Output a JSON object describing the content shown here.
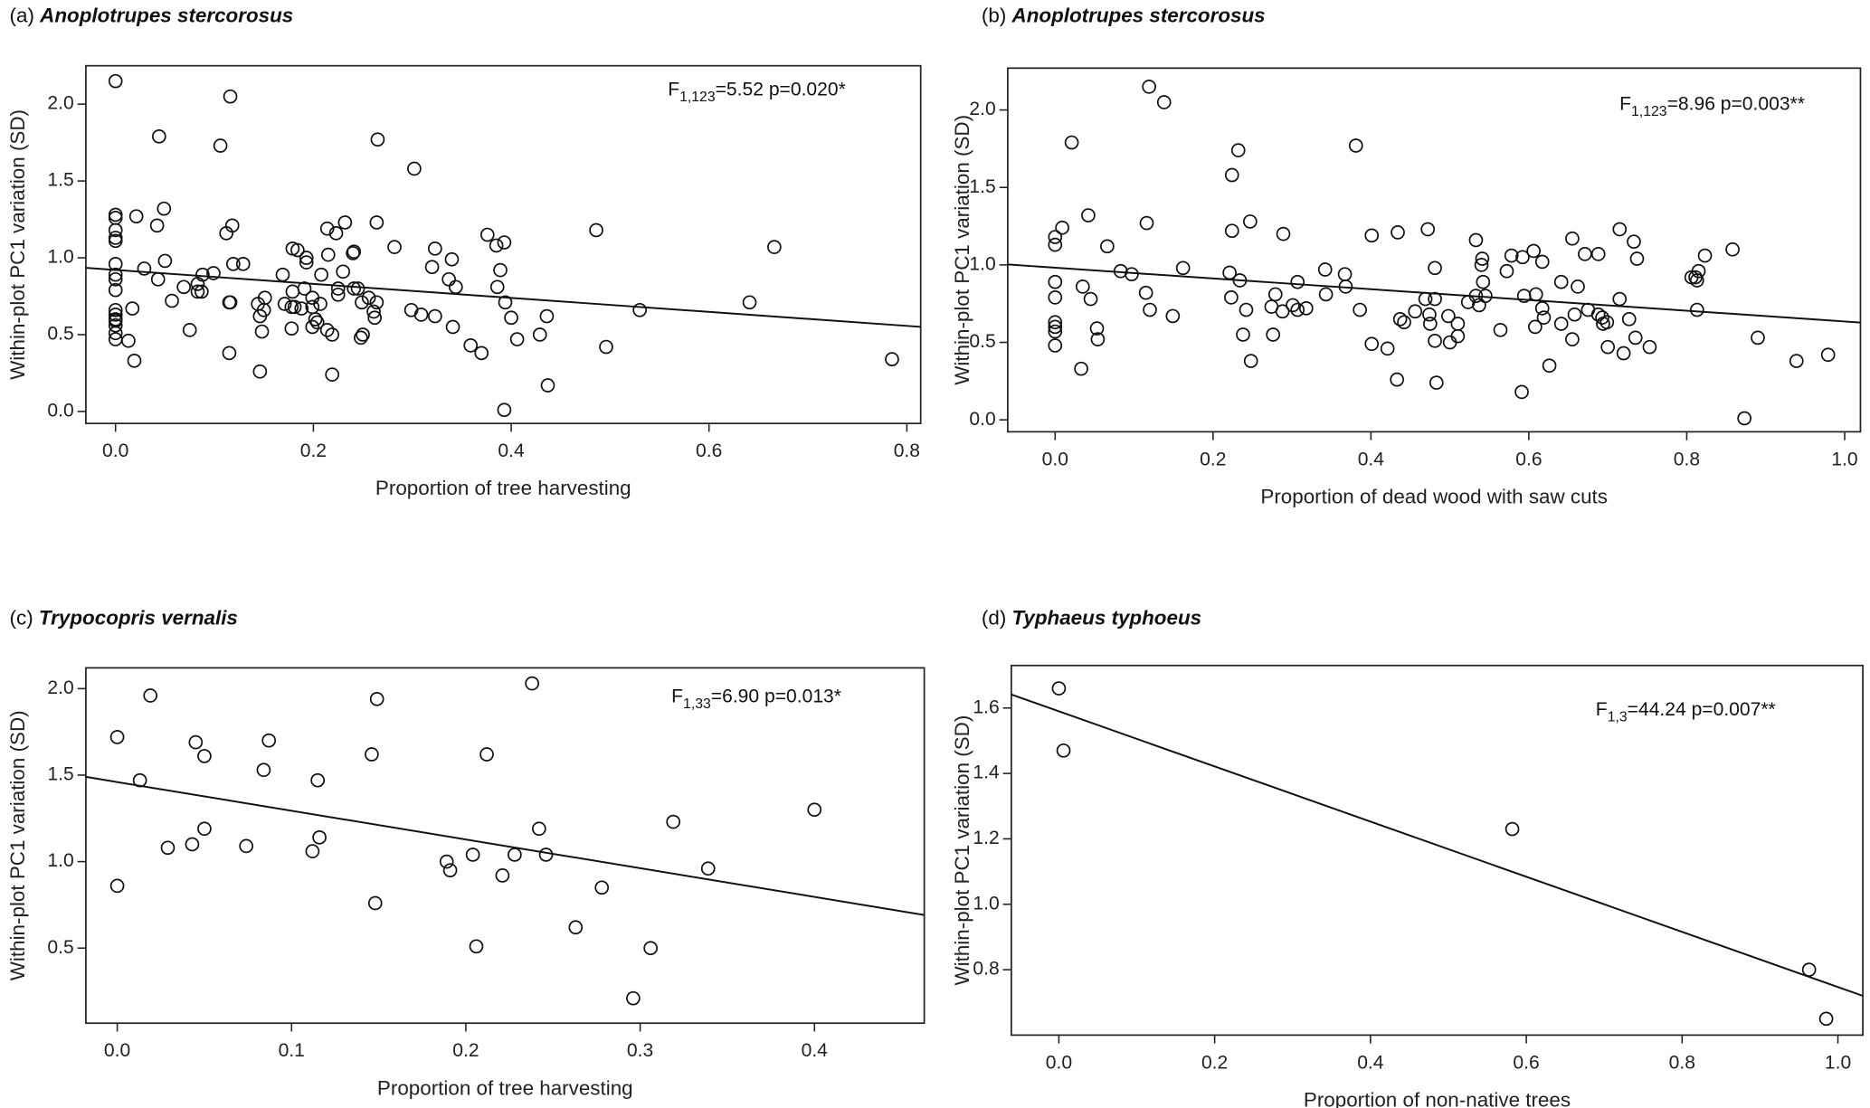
{
  "chart_data": [
    {
      "type": "scatter",
      "panel_label": "(a)",
      "species": "Anoplotrupes stercorosus",
      "xlabel": "Proportion of tree harvesting",
      "ylabel": "Within-plot PC1 variation (SD)",
      "stat": {
        "prefix": "F",
        "subscript": "1,123",
        "text": "=5.52 p=0.020*"
      },
      "xlim": [
        -0.03,
        0.814
      ],
      "ylim": [
        -0.078,
        2.25
      ],
      "xticks": [
        "0.0",
        "0.2",
        "0.4",
        "0.6",
        "0.8"
      ],
      "yticks": [
        "0.0",
        "0.5",
        "1.0",
        "1.5",
        "2.0"
      ],
      "grid": false,
      "fit_line": {
        "intercept": 0.921,
        "slope": -0.455
      },
      "points": [
        [
          0,
          2.15
        ],
        [
          0.116,
          2.05
        ],
        [
          0.044,
          1.79
        ],
        [
          0.106,
          1.73
        ],
        [
          0.265,
          1.77
        ],
        [
          0.302,
          1.58
        ],
        [
          0,
          1.28
        ],
        [
          0,
          1.26
        ],
        [
          0,
          1.18
        ],
        [
          0,
          1.13
        ],
        [
          0,
          1.11
        ],
        [
          0.021,
          1.27
        ],
        [
          0.049,
          1.32
        ],
        [
          0.042,
          1.21
        ],
        [
          0.118,
          1.21
        ],
        [
          0.112,
          1.16
        ],
        [
          0,
          0.96
        ],
        [
          0,
          0.89
        ],
        [
          0,
          0.86
        ],
        [
          0,
          0.79
        ],
        [
          0,
          0.66
        ],
        [
          0,
          0.63
        ],
        [
          0,
          0.6
        ],
        [
          0,
          0.59
        ],
        [
          0,
          0.56
        ],
        [
          0,
          0.51
        ],
        [
          0,
          0.47
        ],
        [
          0.029,
          0.93
        ],
        [
          0.05,
          0.98
        ],
        [
          0.043,
          0.86
        ],
        [
          0.017,
          0.67
        ],
        [
          0.013,
          0.46
        ],
        [
          0.019,
          0.33
        ],
        [
          0.069,
          0.81
        ],
        [
          0.057,
          0.72
        ],
        [
          0.083,
          0.83
        ],
        [
          0.083,
          0.78
        ],
        [
          0.087,
          0.78
        ],
        [
          0.088,
          0.89
        ],
        [
          0.099,
          0.9
        ],
        [
          0.075,
          0.53
        ],
        [
          0.119,
          0.96
        ],
        [
          0.129,
          0.96
        ],
        [
          0.115,
          0.71
        ],
        [
          0.116,
          0.71
        ],
        [
          0.115,
          0.38
        ],
        [
          0.144,
          0.7
        ],
        [
          0.151,
          0.74
        ],
        [
          0.146,
          0.62
        ],
        [
          0.15,
          0.66
        ],
        [
          0.148,
          0.52
        ],
        [
          0.146,
          0.26
        ],
        [
          0.169,
          0.89
        ],
        [
          0.179,
          1.06
        ],
        [
          0.184,
          1.05
        ],
        [
          0.193,
          1.0
        ],
        [
          0.193,
          0.97
        ],
        [
          0.179,
          0.78
        ],
        [
          0.171,
          0.7
        ],
        [
          0.178,
          0.68
        ],
        [
          0.181,
          0.68
        ],
        [
          0.188,
          0.67
        ],
        [
          0.191,
          0.8
        ],
        [
          0.199,
          0.74
        ],
        [
          0.199,
          0.68
        ],
        [
          0.207,
          0.7
        ],
        [
          0.178,
          0.54
        ],
        [
          0.199,
          0.55
        ],
        [
          0.202,
          0.6
        ],
        [
          0.204,
          0.58
        ],
        [
          0.214,
          0.53
        ],
        [
          0.219,
          0.5
        ],
        [
          0.219,
          0.24
        ],
        [
          0.208,
          0.89
        ],
        [
          0.214,
          1.19
        ],
        [
          0.223,
          1.16
        ],
        [
          0.215,
          1.02
        ],
        [
          0.232,
          1.23
        ],
        [
          0.23,
          0.91
        ],
        [
          0.225,
          0.8
        ],
        [
          0.225,
          0.76
        ],
        [
          0.24,
          1.03
        ],
        [
          0.241,
          1.04
        ],
        [
          0.241,
          0.8
        ],
        [
          0.245,
          0.8
        ],
        [
          0.249,
          0.71
        ],
        [
          0.256,
          0.74
        ],
        [
          0.261,
          0.65
        ],
        [
          0.262,
          0.61
        ],
        [
          0.264,
          0.71
        ],
        [
          0.248,
          0.48
        ],
        [
          0.25,
          0.5
        ],
        [
          0.264,
          1.23
        ],
        [
          0.282,
          1.07
        ],
        [
          0.299,
          0.66
        ],
        [
          0.309,
          0.63
        ],
        [
          0.32,
          0.94
        ],
        [
          0.323,
          1.06
        ],
        [
          0.323,
          0.62
        ],
        [
          0.34,
          0.99
        ],
        [
          0.337,
          0.86
        ],
        [
          0.344,
          0.81
        ],
        [
          0.341,
          0.55
        ],
        [
          0.359,
          0.43
        ],
        [
          0.37,
          0.38
        ],
        [
          0.376,
          1.15
        ],
        [
          0.385,
          1.08
        ],
        [
          0.393,
          1.1
        ],
        [
          0.389,
          0.92
        ],
        [
          0.386,
          0.81
        ],
        [
          0.394,
          0.71
        ],
        [
          0.4,
          0.61
        ],
        [
          0.393,
          0.01
        ],
        [
          0.406,
          0.47
        ],
        [
          0.429,
          0.5
        ],
        [
          0.436,
          0.62
        ],
        [
          0.437,
          0.17
        ],
        [
          0.486,
          1.18
        ],
        [
          0.496,
          0.42
        ],
        [
          0.53,
          0.66
        ],
        [
          0.641,
          0.71
        ],
        [
          0.666,
          1.07
        ],
        [
          0.785,
          0.34
        ]
      ]
    },
    {
      "type": "scatter",
      "panel_label": "(b)",
      "species": "Anoplotrupes stercorosus",
      "xlabel": "Proportion of dead wood with saw cuts",
      "ylabel": "Within-plot PC1 variation (SD)",
      "stat": {
        "prefix": "F",
        "subscript": "1,123",
        "text": "=8.96 p=0.003**"
      },
      "xlim": [
        -0.06,
        1.02
      ],
      "ylim": [
        -0.077,
        2.27
      ],
      "xticks": [
        "0.0",
        "0.2",
        "0.4",
        "0.6",
        "0.8",
        "1.0"
      ],
      "yticks": [
        "0.0",
        "0.5",
        "1.0",
        "1.5",
        "2.0"
      ],
      "grid": false,
      "fit_line": {
        "intercept": 0.982,
        "slope": -0.347
      },
      "points": [
        [
          0.119,
          2.15
        ],
        [
          0.138,
          2.05
        ],
        [
          0.021,
          1.79
        ],
        [
          0.232,
          1.74
        ],
        [
          0.381,
          1.77
        ],
        [
          0.224,
          1.58
        ],
        [
          0,
          1.18
        ],
        [
          0,
          1.13
        ],
        [
          0.009,
          1.24
        ],
        [
          0.042,
          1.32
        ],
        [
          0.116,
          1.27
        ],
        [
          0.224,
          1.22
        ],
        [
          0.247,
          1.28
        ],
        [
          0.289,
          1.2
        ],
        [
          0.066,
          1.12
        ],
        [
          0.083,
          0.96
        ],
        [
          0.097,
          0.94
        ],
        [
          0.162,
          0.98
        ],
        [
          0,
          0.89
        ],
        [
          0,
          0.79
        ],
        [
          0,
          0.63
        ],
        [
          0,
          0.6
        ],
        [
          0,
          0.57
        ],
        [
          0,
          0.48
        ],
        [
          0.035,
          0.86
        ],
        [
          0.045,
          0.78
        ],
        [
          0.053,
          0.59
        ],
        [
          0.054,
          0.52
        ],
        [
          0.033,
          0.33
        ],
        [
          0.115,
          0.82
        ],
        [
          0.12,
          0.71
        ],
        [
          0.149,
          0.67
        ],
        [
          0.221,
          0.95
        ],
        [
          0.234,
          0.9
        ],
        [
          0.223,
          0.79
        ],
        [
          0.242,
          0.71
        ],
        [
          0.238,
          0.55
        ],
        [
          0.248,
          0.38
        ],
        [
          0.274,
          0.73
        ],
        [
          0.279,
          0.81
        ],
        [
          0.288,
          0.7
        ],
        [
          0.301,
          0.74
        ],
        [
          0.307,
          0.71
        ],
        [
          0.307,
          0.89
        ],
        [
          0.318,
          0.72
        ],
        [
          0.276,
          0.55
        ],
        [
          0.342,
          0.97
        ],
        [
          0.343,
          0.81
        ],
        [
          0.367,
          0.94
        ],
        [
          0.368,
          0.86
        ],
        [
          0.386,
          0.71
        ],
        [
          0.401,
          1.19
        ],
        [
          0.401,
          0.49
        ],
        [
          0.421,
          0.46
        ],
        [
          0.434,
          1.21
        ],
        [
          0.433,
          0.26
        ],
        [
          0.437,
          0.65
        ],
        [
          0.442,
          0.63
        ],
        [
          0.456,
          0.7
        ],
        [
          0.472,
          1.23
        ],
        [
          0.469,
          0.78
        ],
        [
          0.474,
          0.68
        ],
        [
          0.475,
          0.62
        ],
        [
          0.481,
          0.78
        ],
        [
          0.481,
          0.98
        ],
        [
          0.481,
          0.51
        ],
        [
          0.483,
          0.24
        ],
        [
          0.498,
          0.67
        ],
        [
          0.5,
          0.5
        ],
        [
          0.51,
          0.62
        ],
        [
          0.51,
          0.54
        ],
        [
          0.523,
          0.76
        ],
        [
          0.533,
          1.16
        ],
        [
          0.533,
          0.8
        ],
        [
          0.537,
          0.74
        ],
        [
          0.54,
          1.0
        ],
        [
          0.541,
          1.04
        ],
        [
          0.542,
          0.89
        ],
        [
          0.545,
          0.8
        ],
        [
          0.564,
          0.58
        ],
        [
          0.572,
          0.96
        ],
        [
          0.578,
          1.06
        ],
        [
          0.592,
          1.05
        ],
        [
          0.594,
          0.8
        ],
        [
          0.591,
          0.18
        ],
        [
          0.606,
          1.09
        ],
        [
          0.617,
          1.02
        ],
        [
          0.609,
          0.81
        ],
        [
          0.608,
          0.6
        ],
        [
          0.617,
          0.72
        ],
        [
          0.619,
          0.66
        ],
        [
          0.626,
          0.35
        ],
        [
          0.641,
          0.89
        ],
        [
          0.641,
          0.62
        ],
        [
          0.655,
          1.17
        ],
        [
          0.662,
          0.86
        ],
        [
          0.658,
          0.68
        ],
        [
          0.655,
          0.52
        ],
        [
          0.671,
          1.07
        ],
        [
          0.688,
          1.07
        ],
        [
          0.675,
          0.71
        ],
        [
          0.688,
          0.68
        ],
        [
          0.693,
          0.66
        ],
        [
          0.694,
          0.62
        ],
        [
          0.699,
          0.63
        ],
        [
          0.7,
          0.47
        ],
        [
          0.715,
          0.78
        ],
        [
          0.715,
          1.23
        ],
        [
          0.72,
          0.43
        ],
        [
          0.727,
          0.65
        ],
        [
          0.733,
          1.15
        ],
        [
          0.737,
          1.04
        ],
        [
          0.735,
          0.53
        ],
        [
          0.753,
          0.47
        ],
        [
          0.806,
          0.92
        ],
        [
          0.811,
          0.92
        ],
        [
          0.815,
          0.96
        ],
        [
          0.813,
          0.9
        ],
        [
          0.813,
          0.71
        ],
        [
          0.823,
          1.06
        ],
        [
          0.858,
          1.1
        ],
        [
          0.873,
          0.01
        ],
        [
          0.89,
          0.53
        ],
        [
          0.939,
          0.38
        ],
        [
          0.979,
          0.42
        ]
      ]
    },
    {
      "type": "scatter",
      "panel_label": "(c)",
      "species": "Trypocopris vernalis",
      "xlabel": "Proportion of tree harvesting",
      "ylabel": "Within-plot PC1 variation (SD)",
      "stat": {
        "prefix": "F",
        "subscript": "1,33",
        "text": "=6.90 p=0.013*"
      },
      "xlim": [
        -0.018,
        0.463
      ],
      "ylim": [
        0.066,
        2.12
      ],
      "xticks": [
        "0.0",
        "0.1",
        "0.2",
        "0.3",
        "0.4"
      ],
      "yticks": [
        "0.5",
        "1.0",
        "1.5",
        "2.0"
      ],
      "grid": false,
      "fit_line": {
        "intercept": 1.46,
        "slope": -1.66
      },
      "points": [
        [
          0,
          1.72
        ],
        [
          0.019,
          1.96
        ],
        [
          0,
          0.86
        ],
        [
          0.013,
          1.47
        ],
        [
          0.029,
          1.08
        ],
        [
          0.043,
          1.1
        ],
        [
          0.045,
          1.69
        ],
        [
          0.05,
          1.61
        ],
        [
          0.05,
          1.19
        ],
        [
          0.074,
          1.09
        ],
        [
          0.084,
          1.53
        ],
        [
          0.087,
          1.7
        ],
        [
          0.112,
          1.06
        ],
        [
          0.115,
          1.47
        ],
        [
          0.116,
          1.14
        ],
        [
          0.146,
          1.62
        ],
        [
          0.149,
          1.94
        ],
        [
          0.148,
          0.76
        ],
        [
          0.189,
          1.0
        ],
        [
          0.191,
          0.95
        ],
        [
          0.204,
          1.04
        ],
        [
          0.206,
          0.51
        ],
        [
          0.212,
          1.62
        ],
        [
          0.221,
          0.92
        ],
        [
          0.228,
          1.04
        ],
        [
          0.238,
          2.03
        ],
        [
          0.242,
          1.19
        ],
        [
          0.246,
          1.04
        ],
        [
          0.278,
          0.85
        ],
        [
          0.263,
          0.62
        ],
        [
          0.306,
          0.5
        ],
        [
          0.296,
          0.21
        ],
        [
          0.319,
          1.23
        ],
        [
          0.339,
          0.96
        ],
        [
          0.4,
          1.3
        ]
      ]
    },
    {
      "type": "scatter",
      "panel_label": "(d)",
      "species": "Typhaeus typhoeus",
      "xlabel": "Proportion of non-native trees",
      "ylabel": "Within-plot PC1 variation (SD)",
      "stat": {
        "prefix": "F",
        "subscript": "1,3",
        "text": "=44.24 p=0.007**"
      },
      "xlim": [
        -0.061,
        1.032
      ],
      "ylim": [
        0.6,
        1.73
      ],
      "xticks": [
        "0.0",
        "0.2",
        "0.4",
        "0.6",
        "0.8",
        "1.0"
      ],
      "yticks": [
        "0.8",
        "1.0",
        "1.2",
        "1.4",
        "1.6"
      ],
      "grid": false,
      "fit_line": {
        "intercept": 1.59,
        "slope": -0.843
      },
      "points": [
        [
          0,
          1.66
        ],
        [
          0.006,
          1.47
        ],
        [
          0.582,
          1.23
        ],
        [
          0.963,
          0.8
        ],
        [
          0.985,
          0.65
        ]
      ]
    }
  ]
}
